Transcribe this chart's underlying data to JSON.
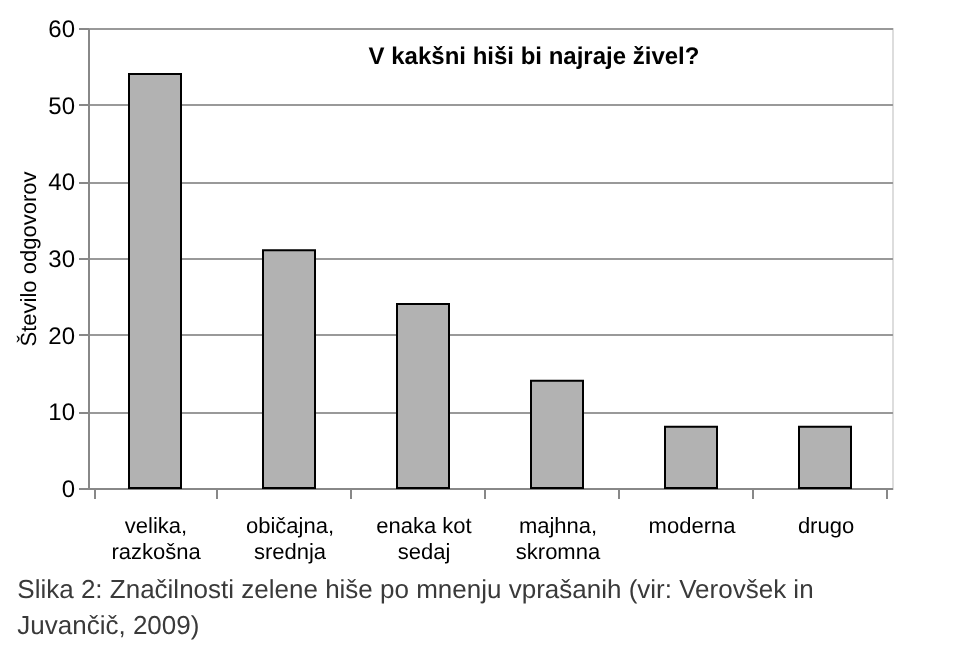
{
  "chart_data": {
    "type": "bar",
    "title": "V kakšni hiši bi najraje živel?",
    "ylabel": "Število odgovorov",
    "categories": [
      "velika, razkošna",
      "običajna, srednja",
      "enaka kot sedaj",
      "majhna, skromna",
      "moderna",
      "drugo"
    ],
    "values": [
      54,
      31,
      24,
      14,
      8,
      8
    ],
    "color": "#b2b2b2",
    "ylim": [
      0,
      60
    ],
    "yticks": [
      0,
      10,
      20,
      30,
      40,
      50,
      60
    ],
    "grid": "y",
    "annotations": [
      "Slika 2: Značilnosti zelene hiše po mnenju vprašanih (vir: Verovšek in Juvančič, 2009)"
    ]
  }
}
